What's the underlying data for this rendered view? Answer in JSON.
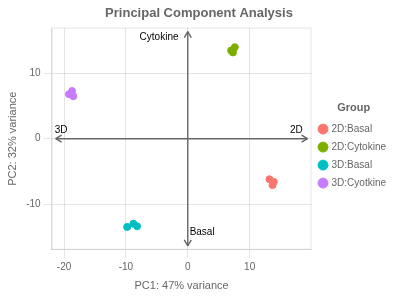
{
  "chart_data": {
    "type": "scatter",
    "title": "Principal Component Analysis",
    "xlabel": "PC1: 47% variance",
    "ylabel": "PC2: 32% variance",
    "xlim": [
      -22,
      20
    ],
    "ylim": [
      -17,
      17
    ],
    "xticks": [
      -20,
      -10,
      0,
      10
    ],
    "yticks": [
      -10,
      0,
      10
    ],
    "grid": true,
    "legend": "right",
    "legend_title": "Group",
    "series": [
      {
        "name": "2D:Basal",
        "color": "#F8766D",
        "x": [
          13.2,
          13.9,
          13.7
        ],
        "y": [
          -6.2,
          -6.6,
          -7.1
        ]
      },
      {
        "name": "2D:Cytokine",
        "color": "#7CAE00",
        "x": [
          7.0,
          7.6,
          7.3
        ],
        "y": [
          13.5,
          14.0,
          13.2
        ]
      },
      {
        "name": "3D:Basal",
        "color": "#00BFC4",
        "x": [
          -9.8,
          -8.8,
          -8.2
        ],
        "y": [
          -13.5,
          -13.0,
          -13.4
        ]
      },
      {
        "name": "3D:Cyotkine",
        "color": "#C77CFF",
        "x": [
          -19.2,
          -18.7,
          -18.5
        ],
        "y": [
          6.8,
          7.3,
          6.5
        ]
      }
    ],
    "annotations": [
      {
        "text": "Cytokine",
        "x": -1.5,
        "y": 14.8
      },
      {
        "text": "Basal",
        "x": 0.3,
        "y": -13.5
      },
      {
        "text": "2D",
        "x": 16.5,
        "y": 0.6
      },
      {
        "text": "3D",
        "x": -21.5,
        "y": 0.6
      }
    ]
  }
}
